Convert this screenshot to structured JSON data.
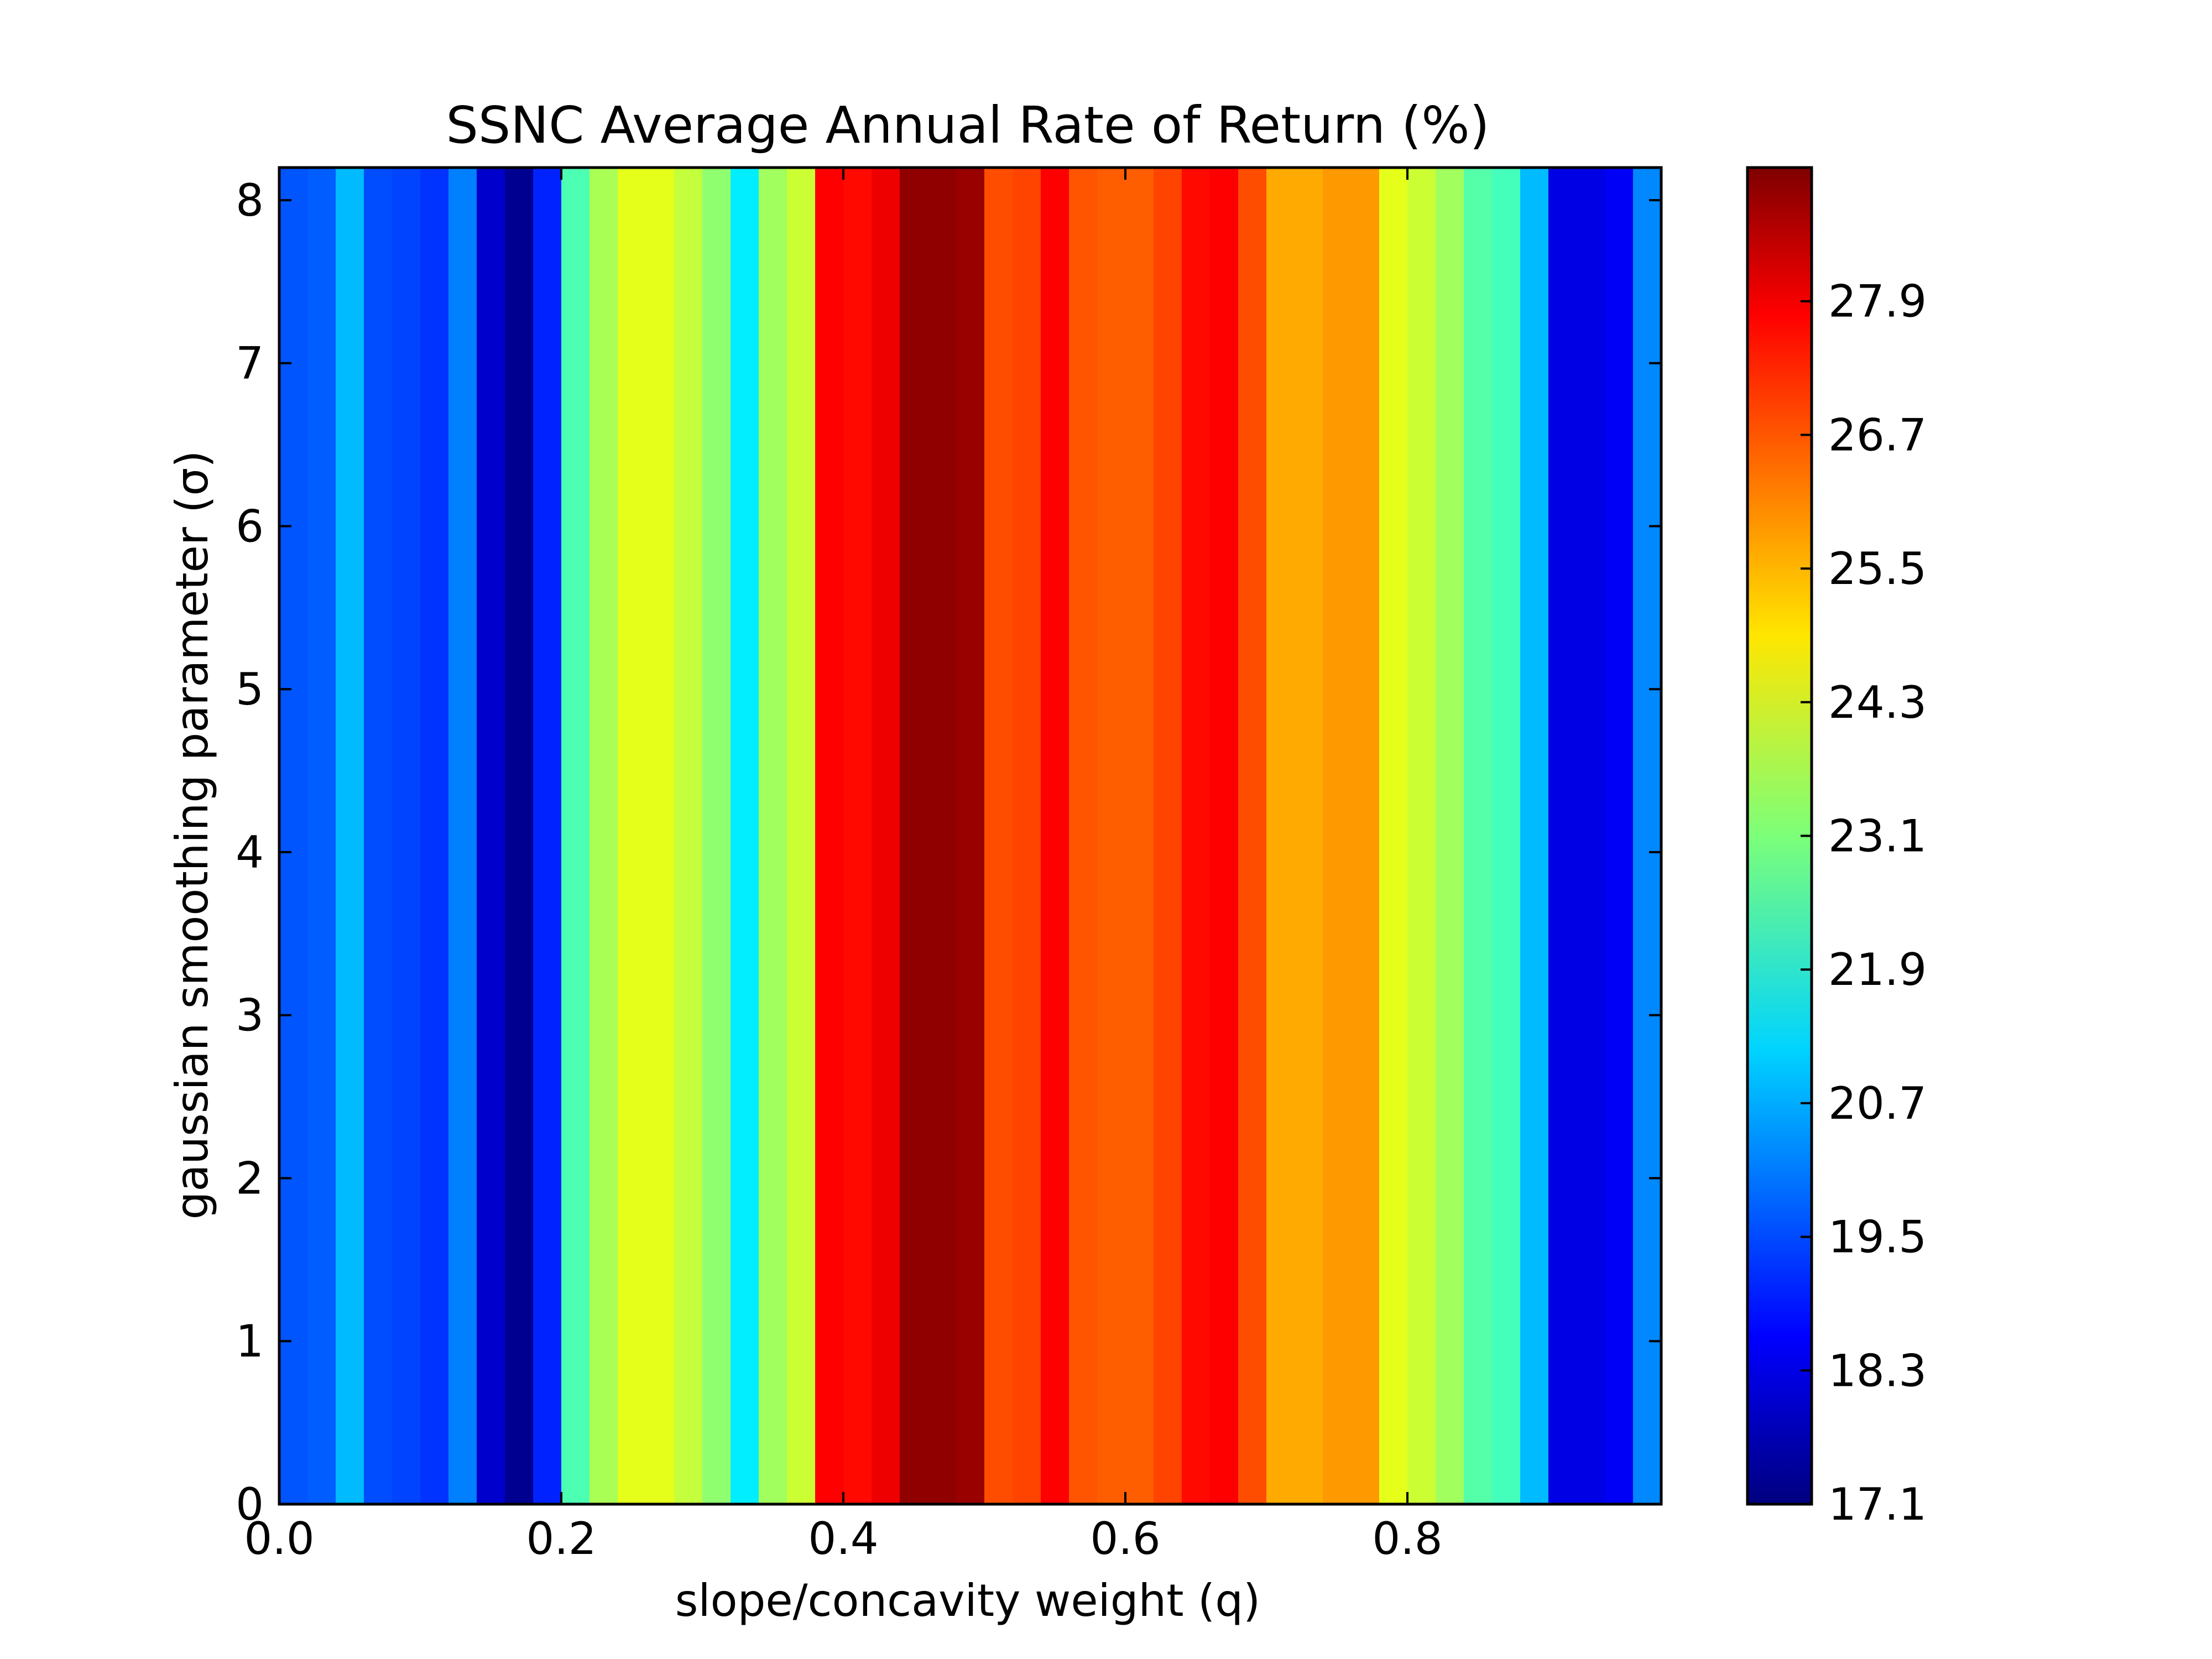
{
  "chart_data": {
    "type": "heatmap",
    "title": "SSNC Average Annual Rate of Return (%)",
    "xlabel": "slope/concavity weight (q)",
    "ylabel": "gaussian smoothing parameter (σ)",
    "xlim": [
      0.0,
      0.98
    ],
    "ylim": [
      0,
      8.2
    ],
    "xticks": [
      0.0,
      0.2,
      0.4,
      0.6,
      0.8
    ],
    "xtick_labels": [
      "0.0",
      "0.2",
      "0.4",
      "0.6",
      "0.8"
    ],
    "yticks": [
      0,
      1,
      2,
      3,
      4,
      5,
      6,
      7,
      8
    ],
    "ytick_labels": [
      "0",
      "1",
      "2",
      "3",
      "4",
      "5",
      "6",
      "7",
      "8"
    ],
    "grid": false,
    "colormap": "jet",
    "colorbar": {
      "range": [
        17.1,
        29.1
      ],
      "ticks": [
        17.1,
        18.3,
        19.5,
        20.7,
        21.9,
        23.1,
        24.3,
        25.5,
        26.7,
        27.9
      ],
      "tick_labels": [
        "17.1",
        "18.3",
        "19.5",
        "20.7",
        "21.9",
        "23.1",
        "24.3",
        "25.5",
        "26.7",
        "27.9"
      ]
    },
    "columns": {
      "q": [
        0.0,
        0.02,
        0.04,
        0.06,
        0.08,
        0.1,
        0.12,
        0.14,
        0.16,
        0.18,
        0.2,
        0.22,
        0.24,
        0.26,
        0.28,
        0.3,
        0.32,
        0.34,
        0.36,
        0.38,
        0.4,
        0.42,
        0.44,
        0.46,
        0.48,
        0.5,
        0.52,
        0.54,
        0.56,
        0.58,
        0.6,
        0.62,
        0.64,
        0.66,
        0.68,
        0.7,
        0.72,
        0.74,
        0.76,
        0.78,
        0.8,
        0.82,
        0.84,
        0.86,
        0.88,
        0.9,
        0.92,
        0.94,
        0.96
      ],
      "values": [
        19.6,
        19.7,
        20.8,
        19.5,
        19.4,
        19.2,
        20.1,
        18.0,
        17.3,
        19.0,
        22.5,
        23.6,
        24.3,
        24.3,
        23.9,
        23.3,
        21.4,
        23.5,
        24.0,
        27.6,
        27.5,
        27.8,
        28.9,
        28.9,
        28.8,
        26.7,
        26.8,
        27.6,
        26.6,
        26.5,
        26.5,
        26.8,
        27.5,
        27.6,
        26.7,
        25.6,
        25.6,
        25.8,
        25.8,
        24.3,
        24.0,
        23.5,
        22.6,
        22.4,
        20.8,
        18.3,
        18.3,
        18.5,
        20.2
      ]
    }
  }
}
